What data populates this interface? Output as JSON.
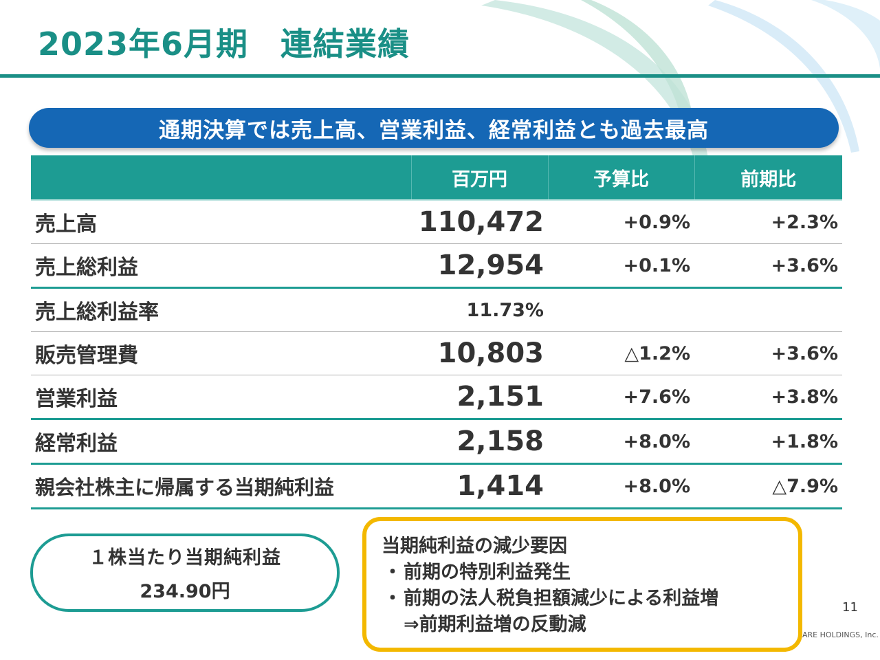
{
  "slide": {
    "title": "2023年6月期　連結業績",
    "banner": "通期決算では売上高、営業利益、経常利益とも過去最高",
    "page_number": "11",
    "company": "ARE HOLDINGS, Inc."
  },
  "table": {
    "headers": [
      "",
      "百万円",
      "予算比",
      "前期比"
    ],
    "rows": [
      {
        "label": "売上高",
        "value": "110,472",
        "budget": "+0.9%",
        "prior": "+2.3%"
      },
      {
        "label": "売上総利益",
        "value": "12,954",
        "budget": "+0.1%",
        "prior": "+3.6%"
      },
      {
        "label": "売上総利益率",
        "value": "11.73%",
        "budget": "",
        "prior": ""
      },
      {
        "label": "販売管理費",
        "value": "10,803",
        "budget": "△1.2%",
        "prior": "+3.6%"
      },
      {
        "label": "営業利益",
        "value": "2,151",
        "budget": "+7.6%",
        "prior": "+3.8%"
      },
      {
        "label": "経常利益",
        "value": "2,158",
        "budget": "+8.0%",
        "prior": "+1.8%"
      },
      {
        "label": "親会社株主に帰属する当期純利益",
        "value": "1,414",
        "budget": "+8.0%",
        "prior": "△7.9%"
      }
    ]
  },
  "eps": {
    "label": "１株当たり当期純利益",
    "value": "234.90円"
  },
  "reason_box": {
    "title": "当期純利益の減少要因",
    "bullet": "・",
    "line1": "前期の特別利益発生",
    "line2": "前期の法人税負担額減少による利益増",
    "line3": "⇒前期利益増の反動減"
  },
  "colors": {
    "teal": "#1a8f86",
    "header_teal": "#1d9c93",
    "banner_blue": "#1567b5",
    "gold": "#f3b800"
  }
}
